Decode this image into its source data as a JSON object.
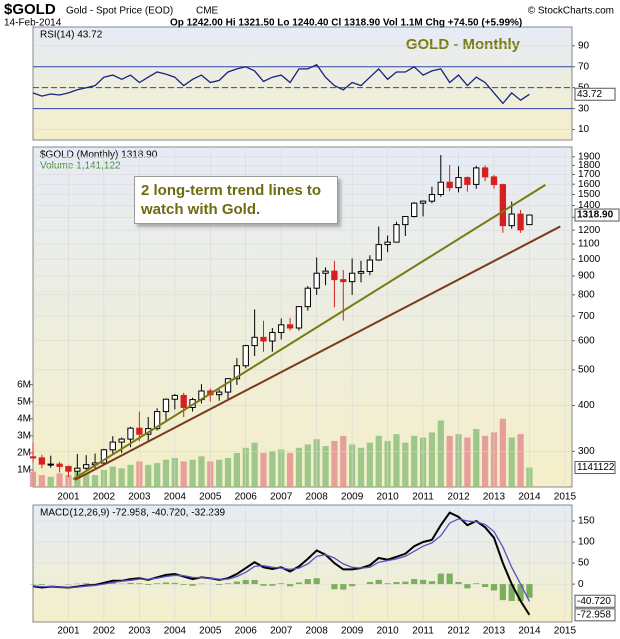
{
  "header": {
    "symbol": "$GOLD",
    "name": "Gold - Spot Price (EOD)",
    "exchange": "CME",
    "date": "14-Feb-2014",
    "quote": "Op 1242.00  Hi 1321.50  Lo 1240.40  Cl 1318.90  Vol 1.1M  Chg +74.50 (+5.99%)",
    "credit": "© StockCharts.com"
  },
  "chart_data": [
    {
      "type": "line",
      "label": "RSI(14) 43.72",
      "title": "GOLD - Monthly",
      "tag": "43.72",
      "x": [
        2000,
        2000.25,
        2000.5,
        2000.75,
        2001,
        2001.25,
        2001.5,
        2001.75,
        2002,
        2002.25,
        2002.5,
        2002.75,
        2003,
        2003.25,
        2003.5,
        2003.75,
        2004,
        2004.25,
        2004.5,
        2004.75,
        2005,
        2005.25,
        2005.5,
        2005.75,
        2006,
        2006.25,
        2006.5,
        2006.75,
        2007,
        2007.25,
        2007.5,
        2007.75,
        2008,
        2008.25,
        2008.5,
        2008.75,
        2009,
        2009.25,
        2009.5,
        2009.75,
        2010,
        2010.25,
        2010.5,
        2010.75,
        2011,
        2011.25,
        2011.5,
        2011.75,
        2012,
        2012.25,
        2012.5,
        2012.75,
        2013,
        2013.25,
        2013.5,
        2013.75,
        2014
      ],
      "series": [
        {
          "color": "#1a237e",
          "values": [
            45,
            42,
            44,
            43,
            45,
            48,
            50,
            52,
            60,
            62,
            58,
            62,
            55,
            60,
            65,
            63,
            60,
            52,
            58,
            62,
            55,
            57,
            65,
            68,
            70,
            66,
            56,
            60,
            62,
            55,
            68,
            68,
            72,
            60,
            52,
            48,
            55,
            52,
            60,
            68,
            58,
            65,
            65,
            70,
            62,
            66,
            68,
            55,
            62,
            52,
            60,
            55,
            45,
            35,
            45,
            38,
            43.72
          ]
        }
      ],
      "ylim": [
        0,
        108
      ],
      "yticks": [
        10,
        30,
        50,
        70,
        90
      ],
      "xlim": [
        2000,
        2015.2
      ],
      "ref_lines": [
        {
          "value": 70,
          "dash": false
        },
        {
          "value": 50,
          "dash": true
        },
        {
          "value": 30,
          "dash": false
        }
      ]
    },
    {
      "type": "candlestick",
      "legend": "$GOLD (Monthly) 1318.90",
      "tag": "1318.90",
      "log": true,
      "up_color": "#000000",
      "down_color": "#d62020",
      "x": [
        2000,
        2000.25,
        2000.5,
        2000.75,
        2001,
        2001.25,
        2001.5,
        2001.75,
        2002,
        2002.25,
        2002.5,
        2002.75,
        2003,
        2003.25,
        2003.5,
        2003.75,
        2004,
        2004.25,
        2004.5,
        2004.75,
        2005,
        2005.25,
        2005.5,
        2005.75,
        2006,
        2006.25,
        2006.5,
        2006.75,
        2007,
        2007.25,
        2007.5,
        2007.75,
        2008,
        2008.25,
        2008.5,
        2008.75,
        2009,
        2009.25,
        2009.5,
        2009.75,
        2010,
        2010.25,
        2010.5,
        2010.75,
        2011,
        2011.25,
        2011.5,
        2011.75,
        2012,
        2012.25,
        2012.5,
        2012.75,
        2013,
        2013.25,
        2013.5,
        2013.75,
        2014
      ],
      "open": [
        290,
        288,
        277,
        277,
        273,
        265,
        270,
        276,
        279,
        303,
        318,
        324,
        347,
        334,
        346,
        385,
        416,
        426,
        395,
        415,
        438,
        428,
        435,
        473,
        513,
        582,
        613,
        599,
        632,
        663,
        650,
        743,
        834,
        916,
        928,
        880,
        869,
        916,
        926,
        995,
        1096,
        1113,
        1242,
        1307,
        1421,
        1439,
        1500,
        1620,
        1566,
        1668,
        1598,
        1772,
        1675,
        1596,
        1234,
        1327,
        1242
      ],
      "high": [
        316,
        294,
        292,
        281,
        274,
        295,
        293,
        296,
        305,
        330,
        327,
        350,
        385,
        372,
        393,
        418,
        430,
        433,
        420,
        457,
        445,
        442,
        475,
        538,
        585,
        730,
        680,
        650,
        690,
        692,
        745,
        845,
        1011,
        950,
        990,
        935,
        1005,
        990,
        1025,
        1227,
        1160,
        1265,
        1310,
        1430,
        1445,
        1575,
        1920,
        1805,
        1790,
        1680,
        1795,
        1800,
        1695,
        1605,
        1435,
        1362,
        1321.5
      ],
      "low": [
        280,
        270,
        271,
        263,
        255,
        255,
        265,
        270,
        276,
        294,
        297,
        308,
        320,
        320,
        342,
        362,
        390,
        372,
        385,
        405,
        410,
        412,
        415,
        455,
        505,
        545,
        560,
        560,
        605,
        640,
        640,
        725,
        800,
        850,
        740,
        681,
        800,
        865,
        905,
        990,
        1045,
        1110,
        1157,
        1300,
        1308,
        1420,
        1480,
        1530,
        1520,
        1527,
        1555,
        1630,
        1555,
        1180,
        1210,
        1180,
        1240.4
      ],
      "close": [
        288,
        277,
        277,
        273,
        265,
        270,
        276,
        279,
        303,
        318,
        324,
        347,
        334,
        346,
        385,
        416,
        426,
        395,
        415,
        438,
        428,
        435,
        473,
        513,
        582,
        613,
        599,
        632,
        663,
        650,
        743,
        834,
        916,
        928,
        880,
        869,
        916,
        926,
        995,
        1096,
        1113,
        1242,
        1307,
        1421,
        1439,
        1500,
        1620,
        1566,
        1668,
        1598,
        1772,
        1675,
        1596,
        1234,
        1327,
        1202,
        1318.9
      ],
      "ylim": [
        240,
        2020
      ],
      "yticks": [
        300,
        400,
        500,
        600,
        700,
        800,
        900,
        1000,
        1100,
        1200,
        1300,
        1400,
        1500,
        1600,
        1700,
        1800,
        1900
      ],
      "xlim": [
        2000,
        2015.2
      ],
      "xticks": [
        2001,
        2002,
        2003,
        2004,
        2005,
        2006,
        2007,
        2008,
        2009,
        2010,
        2011,
        2012,
        2013,
        2014,
        2015
      ],
      "trend_lines": [
        {
          "color": "#7a7a14",
          "x": [
            2001.13,
            2014.45
          ],
          "y": [
            252,
            1593
          ]
        },
        {
          "color": "#7b3a1a",
          "x": [
            2001.18,
            2014.87
          ],
          "y": [
            251,
            1228
          ]
        }
      ],
      "annotation": "2 long-term trend lines to watch with Gold."
    },
    {
      "type": "bar",
      "legend": "Volume 1,141,122",
      "tag": "1141122",
      "up_color": "#8fbf7f",
      "down_color": "#e39090",
      "x": [
        2000,
        2000.25,
        2000.5,
        2000.75,
        2001,
        2001.25,
        2001.5,
        2001.75,
        2002,
        2002.25,
        2002.5,
        2002.75,
        2003,
        2003.25,
        2003.5,
        2003.75,
        2004,
        2004.25,
        2004.5,
        2004.75,
        2005,
        2005.25,
        2005.5,
        2005.75,
        2006,
        2006.25,
        2006.5,
        2006.75,
        2007,
        2007.25,
        2007.5,
        2007.75,
        2008,
        2008.25,
        2008.5,
        2008.75,
        2009,
        2009.25,
        2009.5,
        2009.75,
        2010,
        2010.25,
        2010.5,
        2010.75,
        2011,
        2011.25,
        2011.5,
        2011.75,
        2012,
        2012.25,
        2012.5,
        2012.75,
        2013,
        2013.25,
        2013.5,
        2013.75,
        2014
      ],
      "values": [
        900000,
        700000,
        600000,
        800000,
        700000,
        900000,
        800000,
        700000,
        1000000,
        1200000,
        1100000,
        1300000,
        1500000,
        1300000,
        1400000,
        1600000,
        1700000,
        1500000,
        1600000,
        1800000,
        1500000,
        1600000,
        1700000,
        2000000,
        2300000,
        2600000,
        2000000,
        2100000,
        2200000,
        2000000,
        2300000,
        2500000,
        2800000,
        2400000,
        2700000,
        3000000,
        2500000,
        2300000,
        2600000,
        3000000,
        2700000,
        3100000,
        2600000,
        3000000,
        2900000,
        3200000,
        3900000,
        3000000,
        3100000,
        2900000,
        3400000,
        3000000,
        3200000,
        4000000,
        2900000,
        3100000,
        1141122
      ],
      "ylim": [
        0,
        19940000
      ],
      "xlim": [
        2000,
        2015.2
      ],
      "yticks": [
        {
          "value": 1000000,
          "label": "1M"
        },
        {
          "value": 2000000,
          "label": "2M"
        },
        {
          "value": 3000000,
          "label": "3M"
        },
        {
          "value": 4000000,
          "label": "4M"
        },
        {
          "value": 5000000,
          "label": "5M"
        },
        {
          "value": 6000000,
          "label": "6M"
        }
      ]
    },
    {
      "type": "line",
      "label": "MACD(12,26,9) -72.958, -40.720, -32.239",
      "tags": [
        "-40.720",
        "-72.958"
      ],
      "x": [
        2000,
        2000.25,
        2000.5,
        2000.75,
        2001,
        2001.25,
        2001.5,
        2001.75,
        2002,
        2002.25,
        2002.5,
        2002.75,
        2003,
        2003.25,
        2003.5,
        2003.75,
        2004,
        2004.25,
        2004.5,
        2004.75,
        2005,
        2005.25,
        2005.5,
        2005.75,
        2006,
        2006.25,
        2006.5,
        2006.75,
        2007,
        2007.25,
        2007.5,
        2007.75,
        2008,
        2008.25,
        2008.5,
        2008.75,
        2009,
        2009.25,
        2009.5,
        2009.75,
        2010,
        2010.25,
        2010.5,
        2010.75,
        2011,
        2011.25,
        2011.5,
        2011.75,
        2012,
        2012.25,
        2012.5,
        2012.75,
        2013,
        2013.25,
        2013.5,
        2013.75,
        2014
      ],
      "series": [
        {
          "type": "histogram",
          "color": "#5f9f3f",
          "values": [
            -1,
            -2,
            0,
            0,
            -1,
            1,
            2,
            1,
            3,
            4,
            1,
            3,
            2,
            -2,
            2,
            4,
            3,
            -2,
            -4,
            1,
            0,
            -2,
            2,
            6,
            10,
            10,
            -4,
            -4,
            2,
            -5,
            4,
            12,
            14,
            0,
            -12,
            -13,
            -5,
            0,
            5,
            10,
            2,
            5,
            6,
            12,
            10,
            7,
            25,
            25,
            5,
            -10,
            2,
            -7,
            -15,
            -38,
            -40,
            -40,
            -32.239
          ]
        },
        {
          "type": "line",
          "color": "#000000",
          "values": [
            -5,
            -8,
            -6,
            -7,
            -8,
            -6,
            -3,
            -2,
            3,
            8,
            8,
            12,
            14,
            10,
            16,
            22,
            24,
            18,
            12,
            16,
            14,
            10,
            14,
            24,
            38,
            52,
            40,
            36,
            40,
            30,
            42,
            60,
            80,
            70,
            50,
            35,
            35,
            38,
            45,
            62,
            58,
            65,
            72,
            90,
            100,
            105,
            140,
            170,
            160,
            140,
            150,
            135,
            110,
            50,
            0,
            -40,
            -72.958
          ]
        },
        {
          "type": "line",
          "color": "#5b4fc9",
          "values": [
            -4,
            -6,
            -6,
            -7,
            -7,
            -7,
            -5,
            -3,
            0,
            4,
            7,
            9,
            12,
            12,
            14,
            18,
            21,
            20,
            16,
            15,
            14,
            12,
            12,
            18,
            28,
            42,
            44,
            40,
            38,
            35,
            38,
            48,
            66,
            70,
            62,
            48,
            40,
            38,
            40,
            52,
            56,
            60,
            66,
            78,
            90,
            98,
            115,
            145,
            155,
            150,
            148,
            142,
            125,
            88,
            40,
            0,
            -40.72
          ]
        }
      ],
      "ylim": [
        -90,
        188
      ],
      "yticks": [
        0,
        50,
        100,
        150
      ],
      "xlim": [
        2000,
        2015.2
      ],
      "xticks": [
        2001,
        2002,
        2003,
        2004,
        2005,
        2006,
        2007,
        2008,
        2009,
        2010,
        2011,
        2012,
        2013,
        2014,
        2015
      ]
    }
  ]
}
